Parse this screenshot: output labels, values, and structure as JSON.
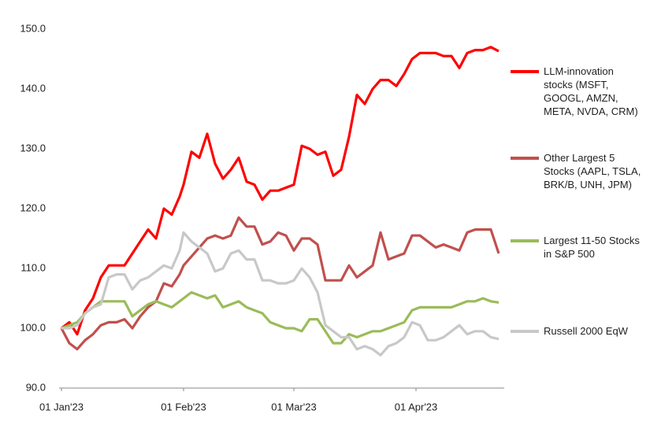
{
  "chart_data": {
    "type": "line",
    "x": [
      "2023-01-01",
      "2023-01-03",
      "2023-01-05",
      "2023-01-07",
      "2023-01-09",
      "2023-01-11",
      "2023-01-13",
      "2023-01-15",
      "2023-01-17",
      "2023-01-19",
      "2023-01-21",
      "2023-01-23",
      "2023-01-25",
      "2023-01-27",
      "2023-01-29",
      "2023-01-31",
      "2023-02-01",
      "2023-02-03",
      "2023-02-05",
      "2023-02-07",
      "2023-02-09",
      "2023-02-11",
      "2023-02-13",
      "2023-02-15",
      "2023-02-17",
      "2023-02-19",
      "2023-02-21",
      "2023-02-23",
      "2023-02-25",
      "2023-02-27",
      "2023-03-01",
      "2023-03-03",
      "2023-03-05",
      "2023-03-07",
      "2023-03-09",
      "2023-03-11",
      "2023-03-13",
      "2023-03-15",
      "2023-03-17",
      "2023-03-19",
      "2023-03-21",
      "2023-03-23",
      "2023-03-25",
      "2023-03-27",
      "2023-03-29",
      "2023-03-31",
      "2023-04-02",
      "2023-04-04",
      "2023-04-06",
      "2023-04-08",
      "2023-04-10",
      "2023-04-12",
      "2023-04-14",
      "2023-04-16",
      "2023-04-18",
      "2023-04-20",
      "2023-04-22"
    ],
    "series": [
      {
        "name": "LLM-innovation stocks (MSFT, GOOGL, AMZN, META, NVDA, CRM)",
        "color": "#ff0000",
        "values": [
          100,
          101,
          99,
          103,
          105,
          108.5,
          110.5,
          110.5,
          110.5,
          112.5,
          114.5,
          116.5,
          115,
          120,
          119,
          122,
          124,
          129.5,
          128.5,
          132.5,
          127.5,
          125,
          126.5,
          128.5,
          124.5,
          124,
          121.5,
          123,
          123,
          123.5,
          124,
          130.5,
          130,
          129,
          129.5,
          125.5,
          126.5,
          132,
          139,
          137.5,
          140,
          141.5,
          141.5,
          140.5,
          142.5,
          145,
          146,
          146,
          146,
          145.5,
          145.5,
          143.5,
          146,
          146.5,
          146.5,
          147,
          146.3
        ]
      },
      {
        "name": "Other Largest 5 Stocks (AAPL, TSLA, BRK/B, UNH, JPM)",
        "color": "#c0504d",
        "values": [
          100,
          97.5,
          96.5,
          98,
          99,
          100.5,
          101,
          101,
          101.5,
          100,
          102,
          103.5,
          104.5,
          107.5,
          107,
          109,
          110.5,
          112,
          113.5,
          115,
          115.5,
          115,
          115.5,
          118.5,
          117,
          117,
          114,
          114.5,
          116,
          115.5,
          113,
          115,
          115,
          114,
          108,
          108,
          108,
          110.5,
          108.5,
          109.5,
          110.5,
          116,
          111.5,
          112,
          112.5,
          115.5,
          115.5,
          114.5,
          113.5,
          114,
          113.5,
          113,
          116,
          116.5,
          116.5,
          116.5,
          112.5
        ]
      },
      {
        "name": "Largest 11-50 Stocks in S&P 500",
        "color": "#9bbb59",
        "values": [
          100,
          100.5,
          101,
          102.5,
          103.5,
          104.5,
          104.5,
          104.5,
          104.5,
          102,
          103,
          104,
          104.5,
          104,
          103.5,
          104.5,
          105,
          106,
          105.5,
          105,
          105.5,
          103.5,
          104,
          104.5,
          103.5,
          103,
          102.5,
          101,
          100.5,
          100,
          100,
          99.5,
          101.5,
          101.5,
          99.5,
          97.5,
          97.5,
          99,
          98.5,
          99,
          99.5,
          99.5,
          100,
          100.5,
          101,
          103,
          103.5,
          103.5,
          103.5,
          103.5,
          103.5,
          104,
          104.5,
          104.5,
          105,
          104.5,
          104.3
        ]
      },
      {
        "name": "Russell 2000 EqW",
        "color": "#c8c8c8",
        "values": [
          100,
          100,
          100.5,
          102.5,
          103.5,
          104,
          108.5,
          109,
          109,
          106.5,
          108,
          108.5,
          109.5,
          110.5,
          110,
          113,
          116,
          114.5,
          113.5,
          112.5,
          109.5,
          110,
          112.5,
          113,
          111.5,
          111.5,
          108,
          108,
          107.5,
          107.5,
          108,
          110,
          108.5,
          106,
          100.5,
          99.5,
          98.5,
          98.5,
          96.5,
          97,
          96.5,
          95.5,
          97,
          97.5,
          98.5,
          101,
          100.5,
          98,
          98,
          98.5,
          99.5,
          100.5,
          99,
          99.5,
          99.5,
          98.5,
          98.2
        ]
      }
    ],
    "xlim": [
      "2023-01-01",
      "2023-04-23"
    ],
    "xticks": [
      {
        "value": "2023-01-01",
        "label": "01 Jan'23"
      },
      {
        "value": "2023-02-01",
        "label": "01 Feb'23"
      },
      {
        "value": "2023-03-01",
        "label": "01 Mar'23"
      },
      {
        "value": "2023-04-01",
        "label": "01 Apr'23"
      }
    ],
    "ylim": [
      90,
      150
    ],
    "yticks": [
      {
        "value": 90,
        "label": "90.0"
      },
      {
        "value": 100,
        "label": "100.0"
      },
      {
        "value": 110,
        "label": "110.0"
      },
      {
        "value": 120,
        "label": "120.0"
      },
      {
        "value": 130,
        "label": "130.0"
      },
      {
        "value": 140,
        "label": "140.0"
      },
      {
        "value": 150,
        "label": "150.0"
      }
    ],
    "grid": false,
    "legend": "right"
  }
}
